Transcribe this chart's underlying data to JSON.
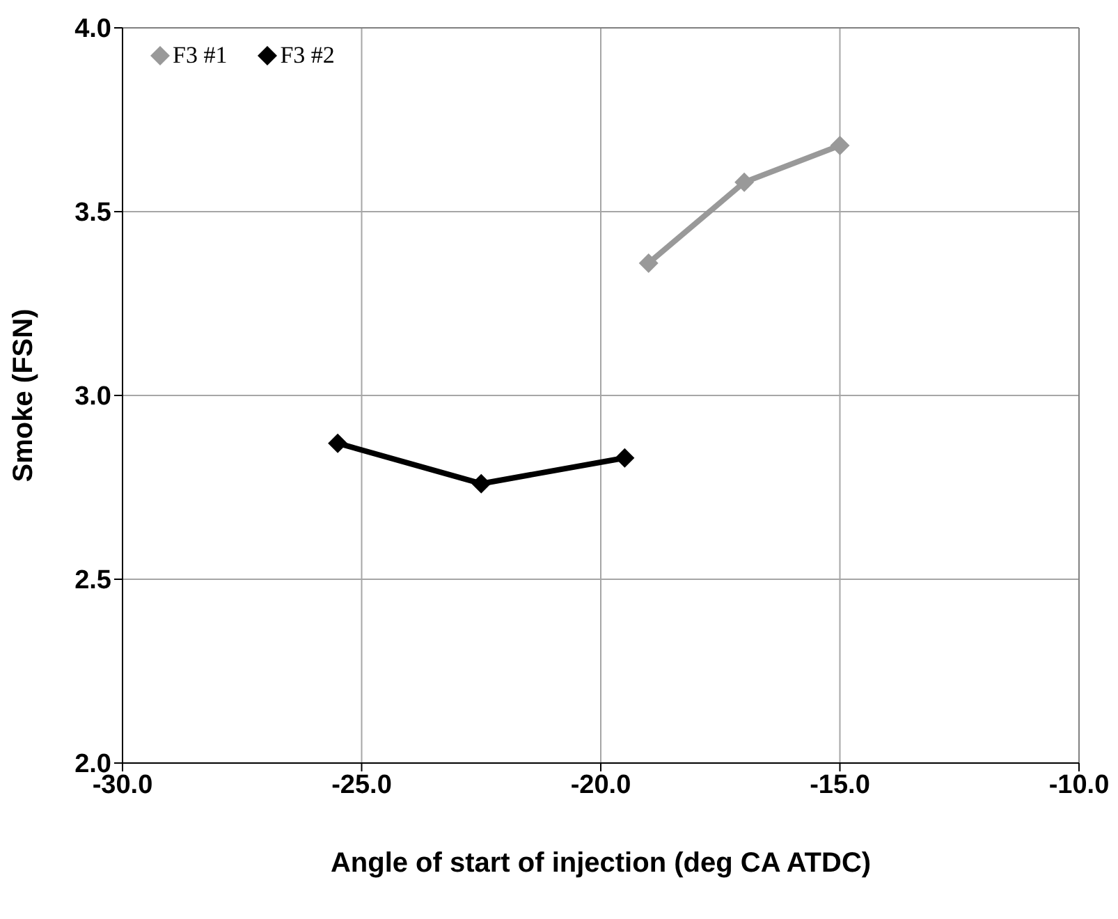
{
  "chart_data": {
    "type": "line",
    "xlabel": "Angle of start of injection (deg CA ATDC)",
    "ylabel": "Smoke (FSN)",
    "series": [
      {
        "name": "F3 #1",
        "color": "#999999",
        "x": [
          -19.0,
          -17.0,
          -15.0
        ],
        "values": [
          3.36,
          3.58,
          3.68
        ]
      },
      {
        "name": "F3 #2",
        "color": "#000000",
        "x": [
          -25.5,
          -22.5,
          -19.5
        ],
        "values": [
          2.87,
          2.76,
          2.83
        ]
      }
    ],
    "xlim": [
      -30,
      -10
    ],
    "xticks": [
      {
        "value": -30,
        "label": "-30.0"
      },
      {
        "value": -25,
        "label": "-25.0"
      },
      {
        "value": -20,
        "label": "-20.0"
      },
      {
        "value": -15,
        "label": "-15.0"
      },
      {
        "value": -10,
        "label": "-10.0"
      }
    ],
    "ylim": [
      2,
      4
    ],
    "yticks": [
      {
        "value": 2,
        "label": "2.0"
      },
      {
        "value": 2.5,
        "label": "2.5"
      },
      {
        "value": 3,
        "label": "3.0"
      },
      {
        "value": 3.5,
        "label": "3.5"
      },
      {
        "value": 4,
        "label": "4.0"
      }
    ],
    "grid": true,
    "legend": "top left",
    "marker": "diamond",
    "line_style": "solid"
  }
}
